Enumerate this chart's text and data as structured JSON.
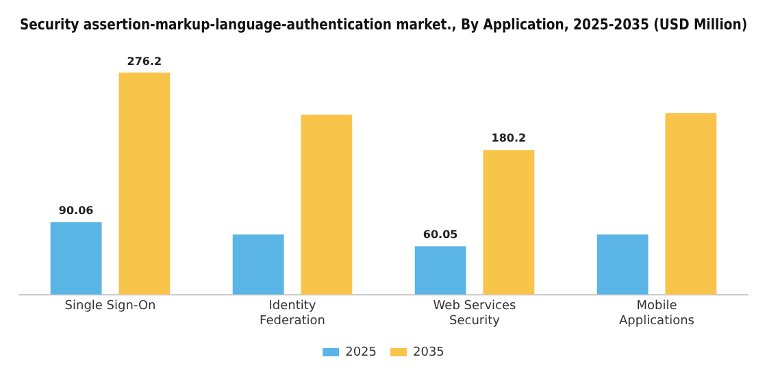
{
  "chart_data": {
    "type": "bar",
    "title": "Security assertion-markup-language-authentication market., By Application, 2025-2035 (USD Million)",
    "categories": [
      "Single Sign-On",
      "Identity Federation",
      "Web Services Security",
      "Mobile Applications"
    ],
    "series": [
      {
        "name": "2025",
        "color": "#5ab4e5",
        "values": [
          90.06,
          75,
          60.05,
          75
        ],
        "value_labels": [
          "90.06",
          null,
          "60.05",
          null
        ]
      },
      {
        "name": "2035",
        "color": "#f8c44a",
        "values": [
          276.2,
          224,
          180.2,
          226
        ],
        "value_labels": [
          "276.2",
          null,
          "180.2",
          null
        ]
      }
    ],
    "legend": "bottom",
    "grid": false
  }
}
